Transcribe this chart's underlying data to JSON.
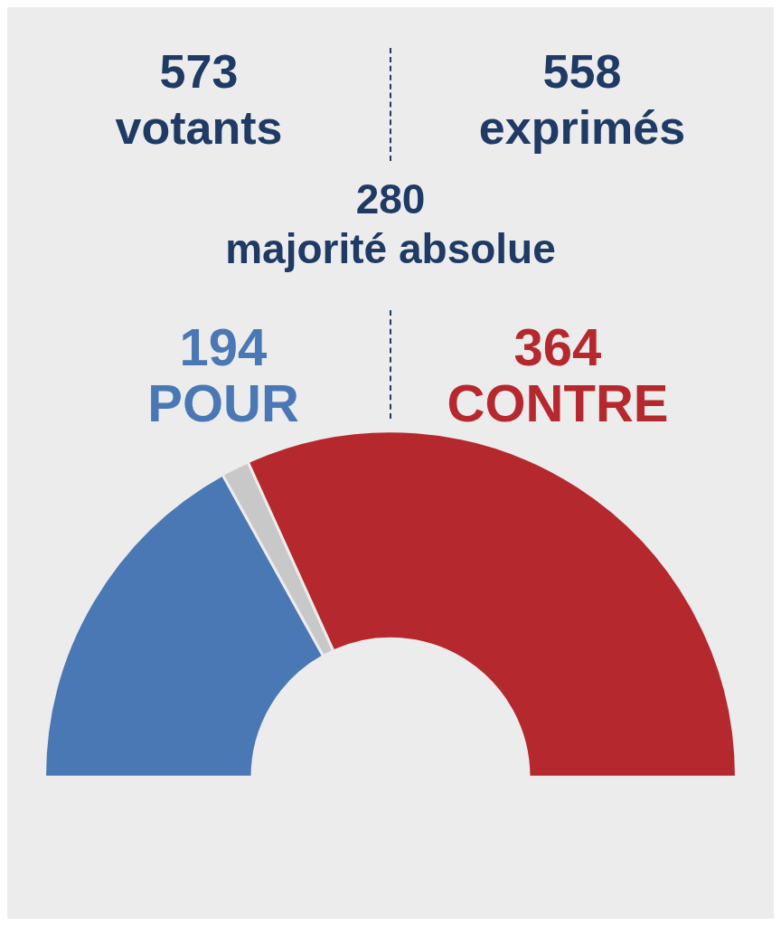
{
  "chart_data": {
    "type": "donut",
    "categories": [
      "POUR",
      null,
      "CONTRE"
    ],
    "values": [
      194,
      15,
      364
    ],
    "colors": [
      "#4a78b5",
      "#c8c8c8",
      "#b5282e"
    ],
    "value_labels": [
      "194",
      null,
      "364"
    ],
    "annotations": [
      "573\nvotants",
      "558\nexprimés",
      "280\nmajorité absolue"
    ]
  }
}
